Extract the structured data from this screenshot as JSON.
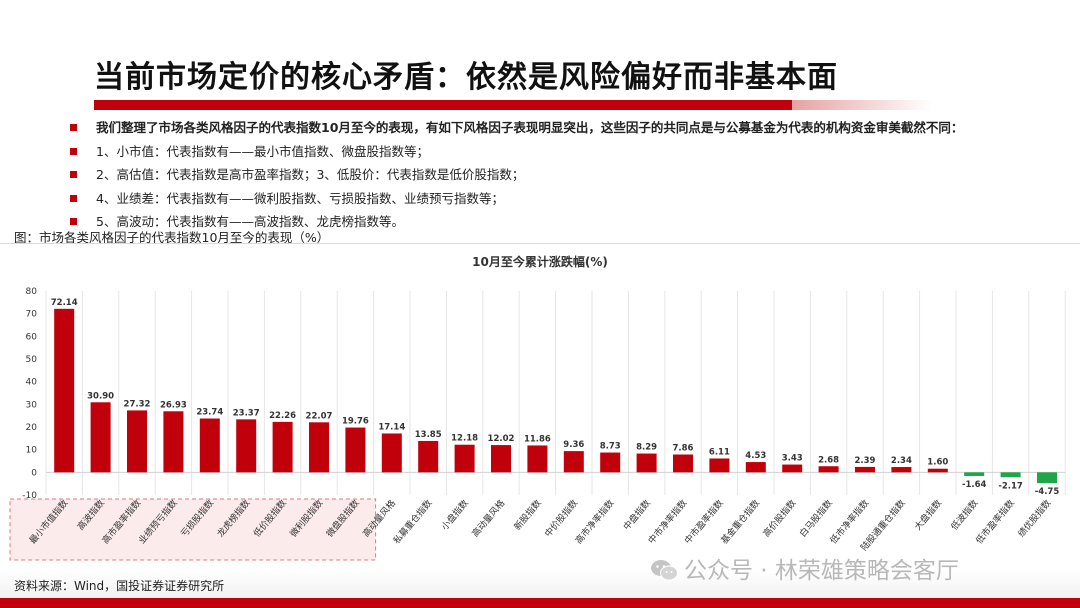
{
  "header": {
    "title": "当前市场定价的核心矛盾：依然是风险偏好而非基本面"
  },
  "bullets": [
    "我们整理了市场各类风格因子的代表指数10月至今的表现，有如下风格因子表现明显突出，这些因子的共同点是与公募基金为代表的机构资金审美截然不同：",
    "1、小市值：代表指数有——最小市值指数、微盘股指数等；",
    "2、高估值：代表指数是高市盈率指数；3、低股价：代表指数是低价股指数；",
    "4、业绩差：代表指数有——微利股指数、亏损股指数、业绩预亏指数等；",
    "5、高波动：代表指数有——高波指数、龙虎榜指数等。"
  ],
  "figure": {
    "caption": "图：市场各类风格因子的代表指数10月至今的表现（%）"
  },
  "chart_data": {
    "type": "bar",
    "title": "10月至今累计涨跌幅(%)",
    "categories": [
      "最小市值指数",
      "高波指数",
      "高市盈率指数",
      "业绩预亏指数",
      "亏损股指数",
      "龙虎榜指数",
      "低价股指数",
      "微利股指数",
      "微盘股指数",
      "高动量风格",
      "私募重仓指数",
      "小盘指数",
      "高动量风格",
      "新股指数",
      "中价股指数",
      "高市净率指数",
      "中盘指数",
      "中市净率指数",
      "中市盈率指数",
      "基金重仓指数",
      "高价股指数",
      "白马股指数",
      "低市净率指数",
      "陆股通重仓指数",
      "大盘指数",
      "低波指数",
      "低市盈率指数",
      "绩优股指数"
    ],
    "values": [
      72.14,
      30.9,
      27.32,
      26.93,
      23.74,
      23.37,
      22.26,
      22.07,
      19.76,
      17.14,
      13.85,
      12.18,
      12.02,
      11.86,
      9.36,
      8.73,
      8.29,
      7.86,
      6.11,
      4.53,
      3.43,
      2.68,
      2.39,
      2.34,
      1.6,
      -1.64,
      -2.17,
      -4.75
    ],
    "value_labels": [
      "72.14",
      "30.90",
      "27.32",
      "26.93",
      "23.74",
      "23.37",
      "22.26",
      "22.07",
      "19.76",
      "17.14",
      "13.85",
      "12.18",
      "12.02",
      "11.86",
      "9.36",
      "8.73",
      "8.29",
      "7.86",
      "6.11",
      "4.53",
      "3.43",
      "2.68",
      "2.39",
      "2.34",
      "1.60",
      "-1.64",
      "-2.17",
      "-4.75"
    ],
    "yticks": [
      "80",
      "70",
      "60",
      "50",
      "40",
      "30",
      "20",
      "10",
      "0",
      "-10"
    ],
    "ylim": [
      -10,
      80
    ],
    "highlighted_count": 9,
    "colors": {
      "positive": "#c0000a",
      "negative": "#1fa64a",
      "highlight_box": "#e07a7a"
    },
    "grid": "vertical",
    "legend": "none"
  },
  "footer": {
    "source": "资料来源：Wind，国投证券证券研究所",
    "watermark": "公众号 · 林荣雄策略会客厅"
  }
}
